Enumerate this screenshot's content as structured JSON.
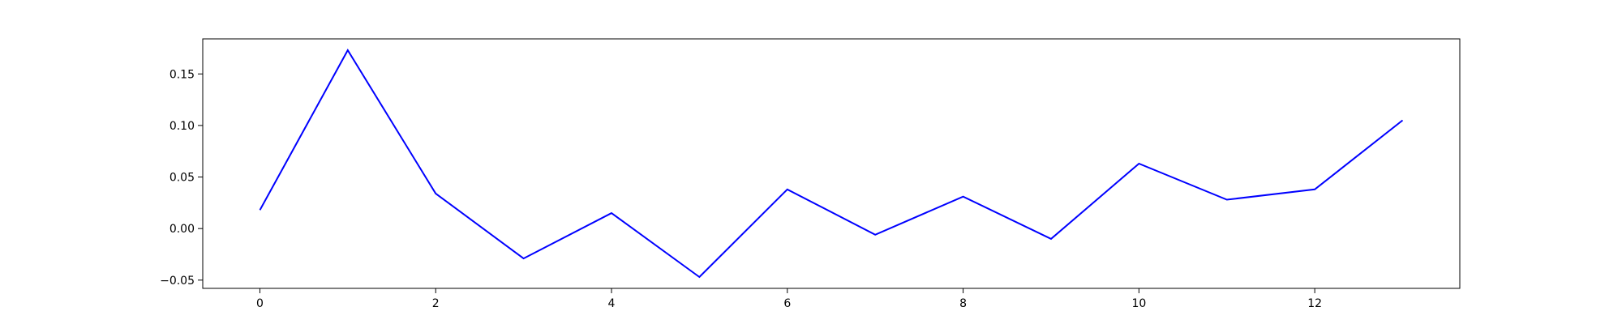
{
  "chart_data": {
    "type": "line",
    "title": "",
    "xlabel": "",
    "ylabel": "",
    "xlim": [
      -0.65,
      13.65
    ],
    "ylim": [
      -0.058,
      0.184
    ],
    "x_ticks": [
      0,
      2,
      4,
      6,
      8,
      10,
      12
    ],
    "x_tick_labels": [
      "0",
      "2",
      "4",
      "6",
      "8",
      "10",
      "12"
    ],
    "y_ticks": [
      -0.05,
      0.0,
      0.05,
      0.1,
      0.15
    ],
    "y_tick_labels": [
      "−0.05",
      "0.00",
      "0.05",
      "0.10",
      "0.15"
    ],
    "grid": false,
    "legend": "none",
    "series": [
      {
        "color": "#0000ff",
        "x": [
          0,
          1,
          2,
          3,
          4,
          5,
          6,
          7,
          8,
          9,
          10,
          11,
          12,
          13
        ],
        "values": [
          0.018,
          0.173,
          0.034,
          -0.029,
          0.015,
          -0.047,
          0.038,
          -0.006,
          0.031,
          -0.01,
          0.063,
          0.028,
          0.038,
          0.105
        ]
      }
    ]
  }
}
